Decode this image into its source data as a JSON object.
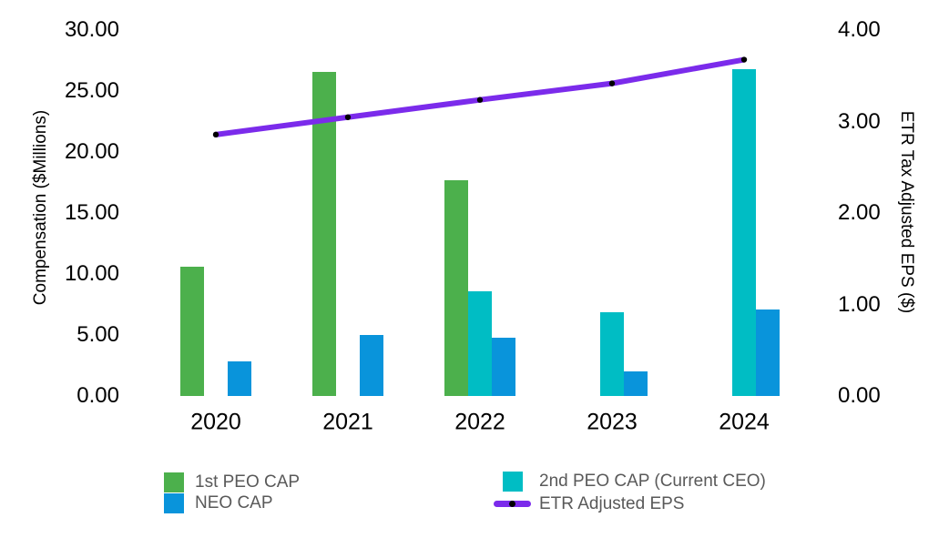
{
  "chart_data": {
    "type": "bar",
    "subtype": "grouped-bar-with-line-dual-axis",
    "categories": [
      "2020",
      "2021",
      "2022",
      "2023",
      "2024"
    ],
    "series": [
      {
        "name": "1st PEO CAP",
        "kind": "bar",
        "axis": "left",
        "color": "#4CB04C",
        "values": [
          10.6,
          26.6,
          17.7,
          null,
          null
        ]
      },
      {
        "name": "2nd PEO CAP (Current CEO)",
        "kind": "bar",
        "axis": "left",
        "color": "#00BDC4",
        "values": [
          null,
          null,
          8.6,
          6.9,
          26.8
        ]
      },
      {
        "name": "NEO CAP",
        "kind": "bar",
        "axis": "left",
        "color": "#0994DB",
        "values": [
          2.8,
          5.0,
          4.8,
          2.0,
          7.1
        ]
      },
      {
        "name": "ETR Adjusted EPS",
        "kind": "line",
        "axis": "right",
        "color": "#7B2BEB",
        "marker_color": "#000000",
        "values": [
          2.86,
          3.05,
          3.24,
          3.42,
          3.68
        ]
      }
    ],
    "left_axis": {
      "label": "Compensation ($Millions)",
      "min": 0,
      "max": 30,
      "ticks": [
        {
          "label": "30.00",
          "value": 30
        },
        {
          "label": "25.00",
          "value": 25
        },
        {
          "label": "20.00",
          "value": 20
        },
        {
          "label": "15.00",
          "value": 15
        },
        {
          "label": "10.00",
          "value": 10
        },
        {
          "label": "5.00",
          "value": 5
        },
        {
          "label": "0.00",
          "value": 0
        }
      ]
    },
    "right_axis": {
      "label": "ETR Tax Adjusted EPS ($)",
      "min": 0,
      "max": 4,
      "ticks": [
        {
          "label": "4.00",
          "value": 4
        },
        {
          "label": "3.00",
          "value": 3
        },
        {
          "label": "2.00",
          "value": 2
        },
        {
          "label": "1.00",
          "value": 1
        },
        {
          "label": "0.00",
          "value": 0
        }
      ]
    },
    "legend": {
      "position": "bottom",
      "items": [
        {
          "label": "1st PEO CAP",
          "swatch": "square",
          "color": "#4CB04C"
        },
        {
          "label": "NEO CAP",
          "swatch": "square",
          "color": "#0994DB"
        },
        {
          "label": "2nd PEO CAP (Current CEO)",
          "swatch": "square",
          "color": "#00BDC4"
        },
        {
          "label": "ETR Adjusted EPS",
          "swatch": "line",
          "color": "#7B2BEB",
          "marker_color": "#000000"
        }
      ]
    },
    "grid": "off",
    "background_color": "#FFFFFF",
    "text_color": "#000000",
    "legend_text_color": "#595959"
  }
}
